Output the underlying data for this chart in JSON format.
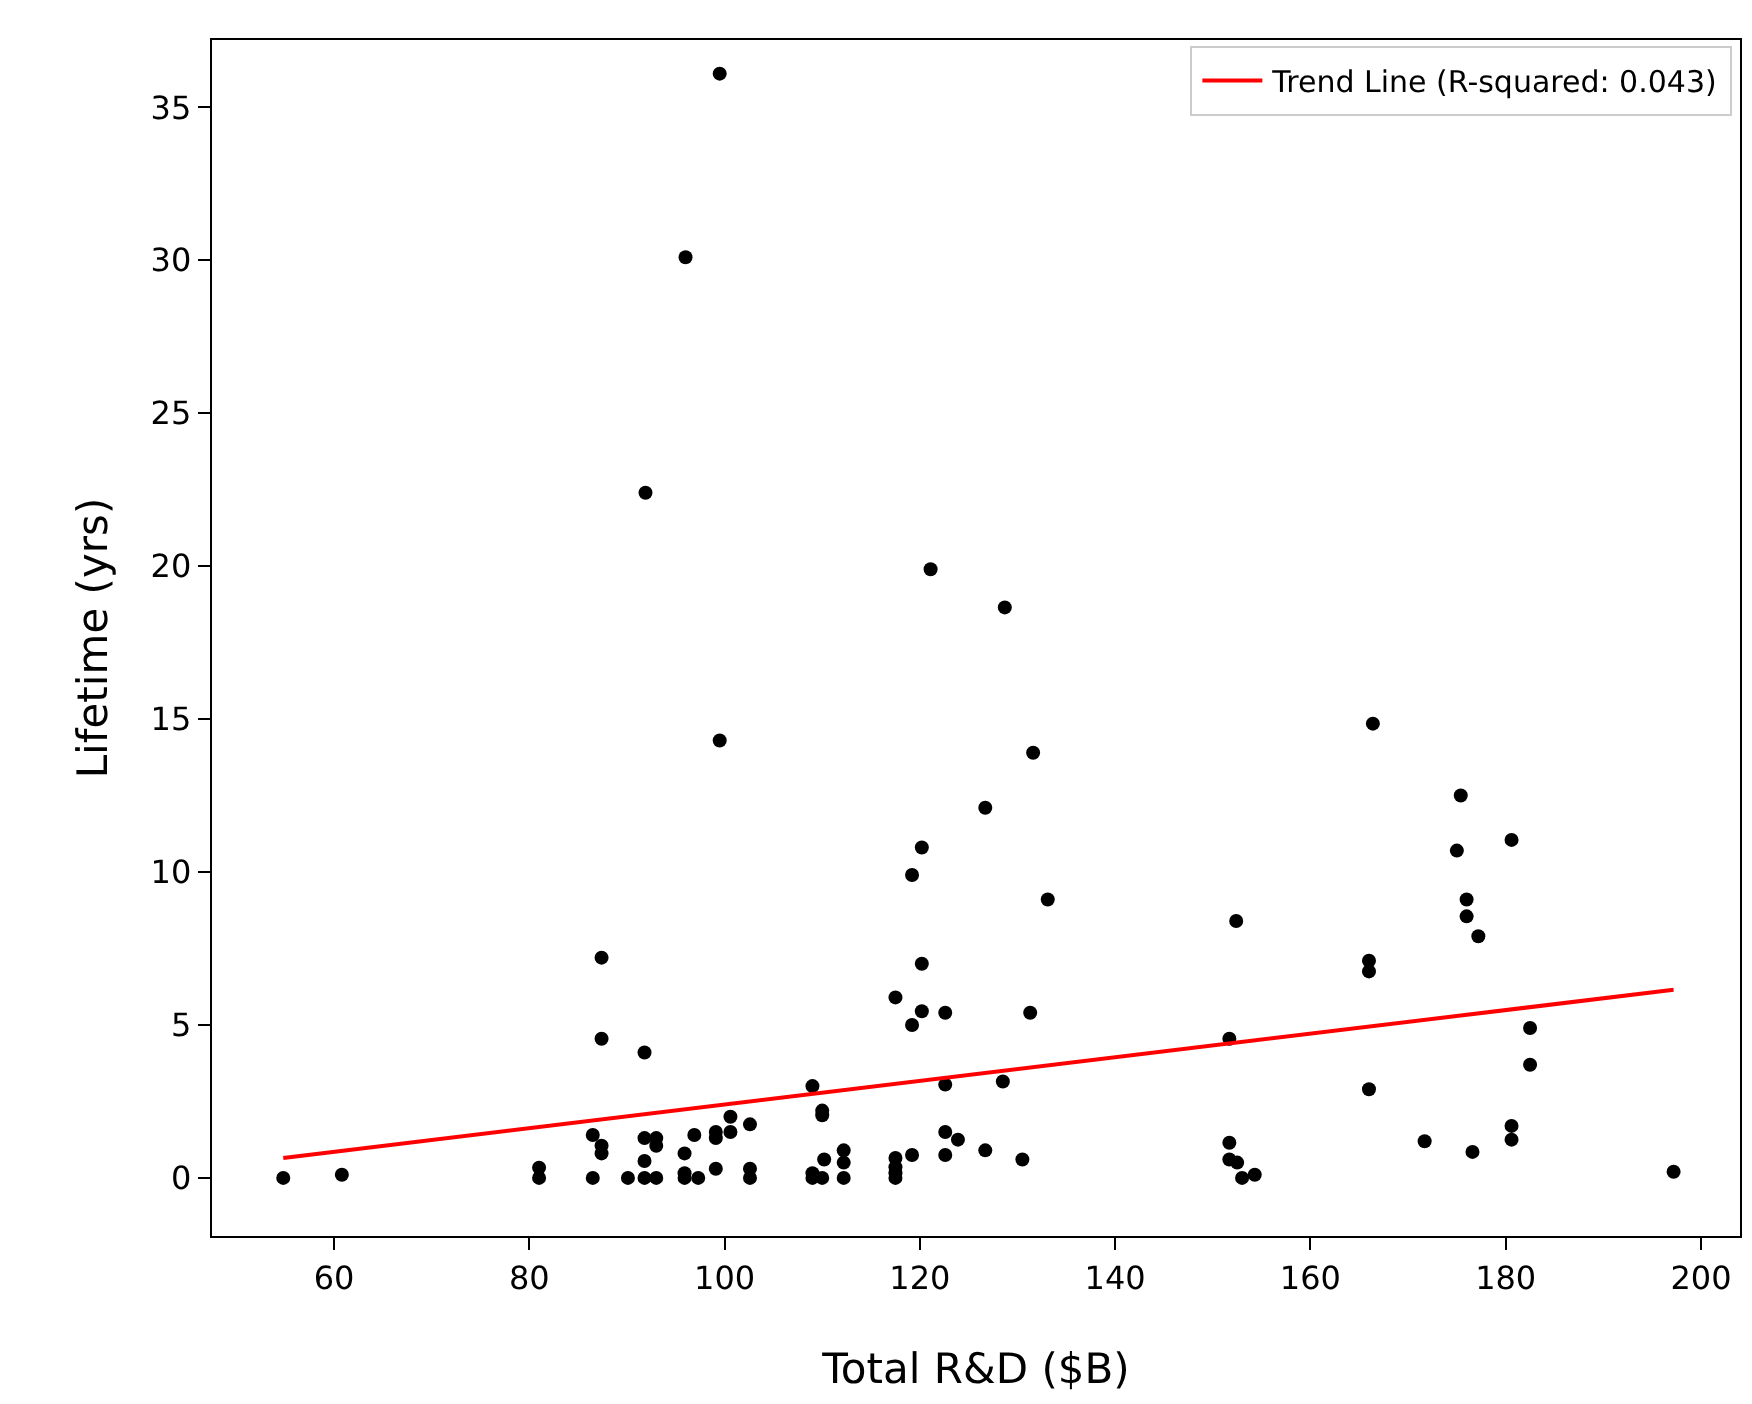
{
  "chart_data": {
    "type": "scatter",
    "xlabel": "Total R&D ($B)",
    "ylabel": "Lifetime (yrs)",
    "xlim": [
      47.5,
      204
    ],
    "xticks": [
      60,
      80,
      100,
      120,
      140,
      160,
      180,
      200
    ],
    "ylim": [
      -1.9,
      37.2
    ],
    "yticks": [
      0,
      5,
      10,
      15,
      20,
      25,
      30,
      35
    ],
    "grid": false,
    "legend": "top right",
    "series": [
      {
        "marker": "circle",
        "color": "#000000",
        "x": [
          54.8,
          60.8,
          87.4,
          87.4,
          91.8,
          109,
          110,
          110,
          81,
          81,
          86.5,
          87.4,
          87.4,
          86.5,
          90.1,
          91.8,
          93,
          91.8,
          93,
          91.8,
          93,
          95.9,
          96.9,
          95.9,
          95.9,
          97.3,
          99.1,
          99.1,
          100.6,
          100.6,
          99.1,
          102.6,
          102.6,
          102.6,
          109,
          109,
          110,
          110.2,
          112.2,
          112.2,
          112.2,
          117.5,
          117.5,
          117.5,
          117.5,
          119.2,
          117.5,
          119.2,
          120.2,
          120.2,
          119.2,
          120.2,
          122.6,
          126.7,
          133.1,
          131.3,
          122.6,
          128.5,
          122.6,
          123.9,
          122.6,
          126.7,
          130.5,
          152.4,
          151.7,
          151.7,
          151.7,
          152.5,
          153,
          154.3,
          166,
          166,
          166,
          171.7,
          175,
          176,
          176,
          177.2,
          176.6,
          180.6,
          180.6,
          180.6,
          182.5,
          182.5,
          197.2,
          175.4,
          99.5,
          96,
          91.9,
          121.1,
          128.7,
          99.5,
          131.6,
          166.4
        ],
        "values": [
          0,
          0.1,
          7.2,
          4.55,
          4.1,
          3,
          2.2,
          2.05,
          0.33,
          0,
          1.4,
          1.05,
          0.8,
          0,
          0,
          1.3,
          1.3,
          0.55,
          1.05,
          0,
          0,
          0.8,
          1.4,
          0.15,
          0,
          0,
          1.5,
          1.3,
          2,
          1.5,
          0.3,
          1.75,
          0.3,
          0,
          0.15,
          0,
          0,
          0.6,
          0.9,
          0.5,
          0,
          0.65,
          0.35,
          0.15,
          0,
          0.75,
          5.9,
          9.9,
          10.8,
          7,
          5,
          5.45,
          5.4,
          12.1,
          9.1,
          5.4,
          3.05,
          3.15,
          1.5,
          1.25,
          0.75,
          0.9,
          0.6,
          8.4,
          4.55,
          1.15,
          0.6,
          0.5,
          0,
          0.1,
          7.1,
          6.75,
          2.9,
          1.2,
          10.7,
          9.1,
          8.55,
          7.9,
          0.85,
          11.05,
          1.7,
          1.25,
          4.9,
          3.7,
          0.2,
          12.5,
          36.1,
          30.1,
          22.4,
          19.9,
          18.65,
          14.3,
          13.9,
          14.85
        ]
      },
      {
        "type": "line",
        "name": "Trend Line (R-squared: 0.043)",
        "color": "#ff0000",
        "x": [
          54.8,
          197.2
        ],
        "values": [
          0.65,
          6.15
        ]
      }
    ]
  }
}
